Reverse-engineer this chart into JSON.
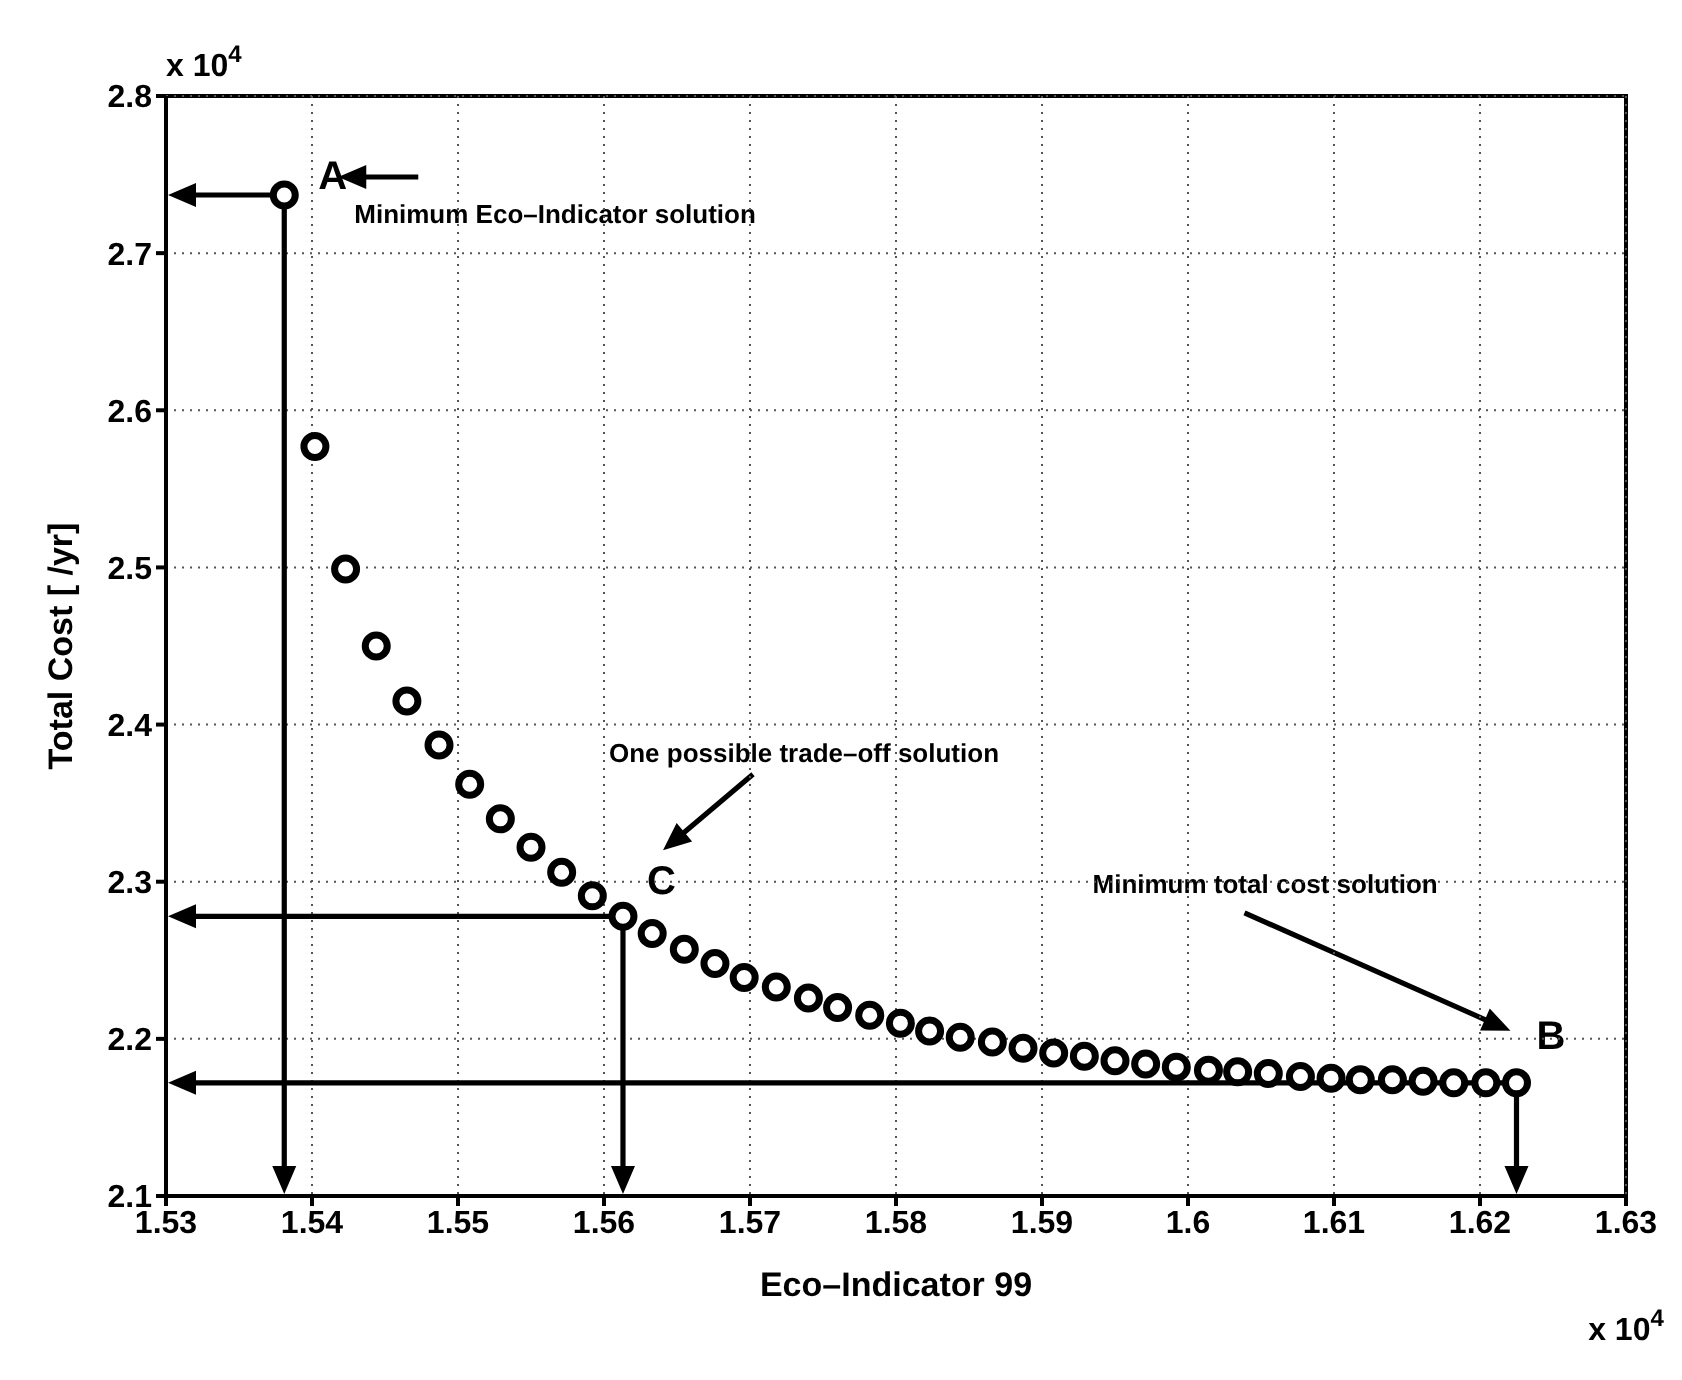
{
  "chart_data": {
    "type": "scatter",
    "xlabel": "Eco–Indicator 99",
    "ylabel": "Total Cost [ /yr]",
    "x": [
      1.5381,
      1.5402,
      1.5423,
      1.5444,
      1.5465,
      1.5487,
      1.5508,
      1.5529,
      1.555,
      1.5571,
      1.5592,
      1.5613,
      1.5633,
      1.5655,
      1.5676,
      1.5696,
      1.5718,
      1.574,
      1.576,
      1.5782,
      1.5803,
      1.5823,
      1.5844,
      1.5866,
      1.5887,
      1.5908,
      1.5929,
      1.595,
      1.5971,
      1.5992,
      1.6014,
      1.6034,
      1.6055,
      1.6077,
      1.6098,
      1.6118,
      1.614,
      1.6161,
      1.6182,
      1.6204,
      1.6225
    ],
    "series": [
      {
        "color": "#000000",
        "values": [
          2.737,
          2.577,
          2.499,
          2.45,
          2.415,
          2.387,
          2.362,
          2.34,
          2.322,
          2.306,
          2.291,
          2.278,
          2.267,
          2.257,
          2.248,
          2.239,
          2.233,
          2.226,
          2.22,
          2.215,
          2.21,
          2.205,
          2.201,
          2.198,
          2.194,
          2.191,
          2.189,
          2.186,
          2.184,
          2.182,
          2.18,
          2.179,
          2.178,
          2.176,
          2.175,
          2.174,
          2.174,
          2.173,
          2.172,
          2.172,
          2.172
        ]
      }
    ],
    "xlim": [
      1.53,
      1.63
    ],
    "xticks": [
      1.53,
      1.54,
      1.55,
      1.56,
      1.57,
      1.58,
      1.59,
      1.6,
      1.61,
      1.62,
      1.63
    ],
    "ylim": [
      2.1,
      2.8
    ],
    "yticks": [
      2.1,
      2.2,
      2.3,
      2.4,
      2.5,
      2.6,
      2.7,
      2.8
    ],
    "grid": true,
    "marker": "circle",
    "annotations": [
      "x 10$^{4}$",
      "x 10$^{4}$",
      {
        "text": "A",
        "x": 1.5381,
        "y": 2.737
      },
      {
        "text": "Minimum Eco–Indicator solution",
        "x": 1.5381,
        "y": 2.737
      },
      {
        "text": "C",
        "x": 1.5613,
        "y": 2.278
      },
      "One possible trade–off solution",
      {
        "text": "B",
        "x": 1.6225,
        "y": 2.172
      },
      "Minimum total cost solution"
    ]
  }
}
